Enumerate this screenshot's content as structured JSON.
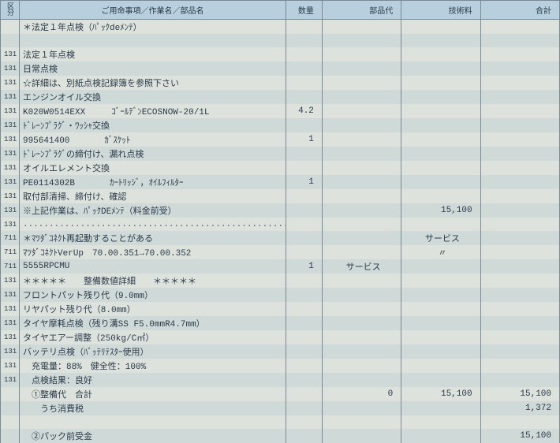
{
  "headers": {
    "kubun": "区分",
    "description": "ご用命事項／作業名／部品名",
    "quantity": "数量",
    "parts_cost": "部品代",
    "tech_fee": "技術料",
    "total": "合計"
  },
  "rows": [
    {
      "alt": false,
      "kubun": "",
      "desc": "＊法定１年点検（ﾊﾟｯｸdeﾒﾝﾃ）",
      "qty": "",
      "parts": "",
      "tech": "",
      "total": ""
    },
    {
      "alt": true,
      "kubun": "",
      "desc": "",
      "qty": "",
      "parts": "",
      "tech": "",
      "total": ""
    },
    {
      "alt": false,
      "kubun": "131",
      "desc": "法定１年点検",
      "qty": "",
      "parts": "",
      "tech": "",
      "total": ""
    },
    {
      "alt": true,
      "kubun": "131",
      "desc": "日常点検",
      "qty": "",
      "parts": "",
      "tech": "",
      "total": ""
    },
    {
      "alt": false,
      "kubun": "131",
      "desc": "☆詳細は、別紙点検記録簿を参照下さい",
      "qty": "",
      "parts": "",
      "tech": "",
      "total": ""
    },
    {
      "alt": true,
      "kubun": "131",
      "desc": "エンジンオイル交換",
      "qty": "",
      "parts": "",
      "tech": "",
      "total": ""
    },
    {
      "alt": false,
      "kubun": "131",
      "desc": "K020W0514EXX　　　ｺﾞｰﾙﾃﾞﾝECOSNOW-20/1L",
      "qty": "4.2",
      "parts": "",
      "tech": "",
      "total": ""
    },
    {
      "alt": true,
      "kubun": "131",
      "desc": "ﾄﾞﾚｰﾝﾌﾟﾗｸﾞ・ﾜｯｼｬ交換",
      "qty": "",
      "parts": "",
      "tech": "",
      "total": ""
    },
    {
      "alt": false,
      "kubun": "131",
      "desc": "995641400　　　　ｶﾞｽｹｯﾄ",
      "qty": "1",
      "parts": "",
      "tech": "",
      "total": ""
    },
    {
      "alt": true,
      "kubun": "131",
      "desc": "ﾄﾞﾚｰﾝﾌﾟﾗｸﾞの締付け、漏れ点検",
      "qty": "",
      "parts": "",
      "tech": "",
      "total": ""
    },
    {
      "alt": false,
      "kubun": "131",
      "desc": "オイルエレメント交換",
      "qty": "",
      "parts": "",
      "tech": "",
      "total": ""
    },
    {
      "alt": true,
      "kubun": "131",
      "desc": "PE0114302B　　　　ｶｰﾄﾘｯｼﾞ，ｵｲﾙﾌｨﾙﾀｰ",
      "qty": "1",
      "parts": "",
      "tech": "",
      "total": ""
    },
    {
      "alt": false,
      "kubun": "131",
      "desc": "取付部清掃、締付け、確認",
      "qty": "",
      "parts": "",
      "tech": "",
      "total": ""
    },
    {
      "alt": true,
      "kubun": "131",
      "desc": "※上記作業は、ﾊﾟｯｸDEﾒﾝﾃ（料金前受）",
      "qty": "",
      "parts": "",
      "tech": "15,100",
      "total": ""
    },
    {
      "alt": false,
      "kubun": "131",
      "desc": "........................................................................",
      "qty": "",
      "parts": "",
      "tech": "",
      "total": "",
      "dotted": true
    },
    {
      "alt": true,
      "kubun": "711",
      "desc": "＊ﾏﾂﾀﾞｺﾈｸﾄ再起動することがある",
      "qty": "",
      "parts": "",
      "tech": "サービス",
      "tech_center": true,
      "total": ""
    },
    {
      "alt": false,
      "kubun": "711",
      "desc": "ﾏﾂﾀﾞｺﾈｸﾄVerUp　70.00.351→70.00.352",
      "qty": "",
      "parts": "",
      "tech": "〃",
      "tech_center": true,
      "total": ""
    },
    {
      "alt": true,
      "kubun": "711",
      "desc": "5555RPCMU",
      "qty": "1",
      "parts": "サービス",
      "parts_center": true,
      "tech": "",
      "total": ""
    },
    {
      "alt": false,
      "kubun": "131",
      "desc": "＊＊＊＊＊　　整備数値詳細　　＊＊＊＊＊",
      "qty": "",
      "parts": "",
      "tech": "",
      "total": ""
    },
    {
      "alt": true,
      "kubun": "131",
      "desc": "フロントパット残り代（9.0mm）",
      "qty": "",
      "parts": "",
      "tech": "",
      "total": ""
    },
    {
      "alt": false,
      "kubun": "131",
      "desc": "リヤパット残り代（8.0mm）",
      "qty": "",
      "parts": "",
      "tech": "",
      "total": ""
    },
    {
      "alt": true,
      "kubun": "131",
      "desc": "タイヤ摩耗点検（残り溝SS F5.0mmR4.7mm）",
      "qty": "",
      "parts": "",
      "tech": "",
      "total": ""
    },
    {
      "alt": false,
      "kubun": "131",
      "desc": "タイヤエアー調整（250kg/C㎡）",
      "qty": "",
      "parts": "",
      "tech": "",
      "total": ""
    },
    {
      "alt": true,
      "kubun": "131",
      "desc": "バッテリ点検（ﾊﾞｯﾃﾘﾃｽﾀｰ使用）",
      "qty": "",
      "parts": "",
      "tech": "",
      "total": ""
    },
    {
      "alt": false,
      "kubun": "131",
      "desc": "　充電量：88%　健全性：100%",
      "qty": "",
      "parts": "",
      "tech": "",
      "total": ""
    },
    {
      "alt": true,
      "kubun": "131",
      "desc": "　点検結果：良好",
      "qty": "",
      "parts": "",
      "tech": "",
      "total": ""
    },
    {
      "alt": false,
      "kubun": "",
      "desc": "　①整備代　合計",
      "qty": "",
      "parts": "0",
      "tech": "15,100",
      "total": "15,100"
    },
    {
      "alt": true,
      "kubun": "",
      "desc": "　　うち消費税",
      "qty": "",
      "parts": "",
      "tech": "",
      "total": "1,372"
    },
    {
      "alt": false,
      "kubun": "",
      "desc": "",
      "qty": "",
      "parts": "",
      "tech": "",
      "total": ""
    },
    {
      "alt": true,
      "kubun": "",
      "desc": "　②パック前受金",
      "qty": "",
      "parts": "",
      "tech": "",
      "total": "15,100"
    }
  ]
}
